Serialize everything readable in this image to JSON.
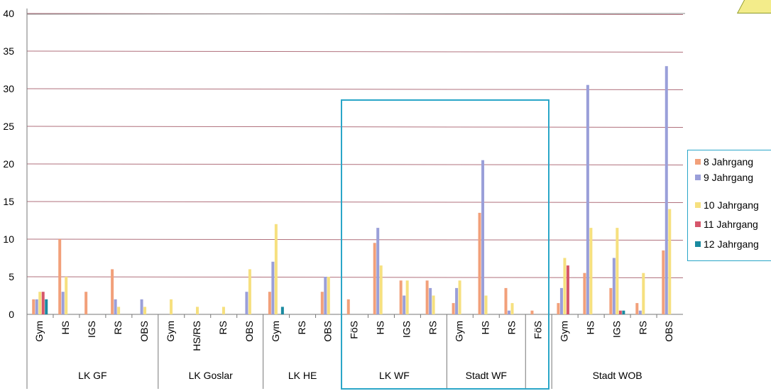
{
  "chart_data": {
    "type": "bar",
    "ylim": [
      0,
      40
    ],
    "yticks": [
      0,
      5,
      10,
      15,
      20,
      25,
      30,
      35,
      40
    ],
    "grid": true,
    "legend_position": "right",
    "series": [
      {
        "name": "8 Jahrgang",
        "color": "#f2a07a"
      },
      {
        "name": "9 Jahrgang",
        "color": "#9a9fd9"
      },
      {
        "name": "10 Jahrgang",
        "color": "#f6e07f"
      },
      {
        "name": "11 Jahrgang",
        "color": "#d6566b"
      },
      {
        "name": "12 Jahrgang",
        "color": "#1a8aa0"
      }
    ],
    "groups": [
      {
        "name": "LK GF",
        "categories": [
          {
            "label": "Gym",
            "values": [
              2,
              2,
              3,
              3,
              2
            ]
          },
          {
            "label": "HS",
            "values": [
              10,
              3,
              5,
              0,
              0
            ]
          },
          {
            "label": "IGS",
            "values": [
              3,
              0,
              0,
              0,
              0
            ]
          },
          {
            "label": "RS",
            "values": [
              6,
              2,
              1,
              0,
              0
            ]
          },
          {
            "label": "OBS",
            "values": [
              0,
              2,
              1,
              0,
              0
            ]
          }
        ]
      },
      {
        "name": "LK Goslar",
        "categories": [
          {
            "label": "Gym",
            "values": [
              0,
              0,
              2,
              0,
              0
            ]
          },
          {
            "label": "HS/RS",
            "values": [
              0,
              0,
              1,
              0,
              0
            ]
          },
          {
            "label": "RS",
            "values": [
              0,
              0,
              1,
              0,
              0
            ]
          },
          {
            "label": "OBS",
            "values": [
              0,
              3,
              6,
              0,
              0
            ]
          }
        ]
      },
      {
        "name": "LK HE",
        "categories": [
          {
            "label": "Gym",
            "values": [
              3,
              7,
              12,
              0,
              1
            ]
          },
          {
            "label": "RS",
            "values": [
              0,
              0,
              0,
              0,
              0
            ]
          },
          {
            "label": "OBS",
            "values": [
              3,
              5,
              5,
              0,
              0
            ]
          }
        ]
      },
      {
        "name": "LK WF",
        "categories": [
          {
            "label": "FöS",
            "values": [
              2,
              0,
              0,
              0,
              0
            ]
          },
          {
            "label": "HS",
            "values": [
              9.5,
              11.5,
              6.5,
              0,
              0
            ]
          },
          {
            "label": "IGS",
            "values": [
              4.5,
              2.5,
              4.5,
              0,
              0
            ]
          },
          {
            "label": "RS",
            "values": [
              4.5,
              3.5,
              2.5,
              0,
              0
            ]
          }
        ]
      },
      {
        "name": "Stadt WF",
        "categories": [
          {
            "label": "Gym",
            "values": [
              1.5,
              3.5,
              4.5,
              0,
              0
            ]
          },
          {
            "label": "HS",
            "values": [
              13.5,
              20.5,
              2.5,
              0,
              0
            ]
          },
          {
            "label": "RS",
            "values": [
              3.5,
              0.5,
              1.5,
              0,
              0
            ]
          }
        ]
      },
      {
        "name": "",
        "categories": [
          {
            "label": "FöS",
            "values": [
              0.5,
              0,
              0,
              0,
              0
            ]
          }
        ]
      },
      {
        "name": "Stadt WOB",
        "categories": [
          {
            "label": "Gym",
            "values": [
              1.5,
              3.5,
              7.5,
              6.5,
              0
            ]
          },
          {
            "label": "HS",
            "values": [
              5.5,
              30.5,
              11.5,
              0,
              0
            ]
          },
          {
            "label": "IGS",
            "values": [
              3.5,
              7.5,
              11.5,
              0.5,
              0.5
            ]
          },
          {
            "label": "RS",
            "values": [
              1.5,
              0.5,
              5.5,
              0,
              0
            ]
          },
          {
            "label": "OBS",
            "values": [
              8.5,
              33,
              14,
              0,
              0
            ]
          }
        ]
      }
    ]
  }
}
